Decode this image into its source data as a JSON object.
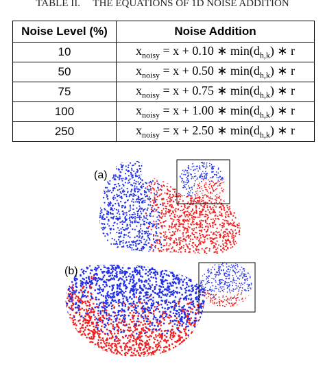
{
  "table_title": "TABLE II.     THE EQUATIONS OF 1D NOISE ADDITION",
  "table": {
    "header": [
      "Noise Level (%)",
      "Noise Addition"
    ],
    "rows": [
      {
        "level": "10",
        "x": "x",
        "x_sub": "noisy",
        "mid": " = x + 0.10 ∗ min(d",
        "d_sub": "h,k",
        "end": ") ∗ r"
      },
      {
        "level": "50",
        "x": "x",
        "x_sub": "noisy",
        "mid": " = x + 0.50 ∗ min(d",
        "d_sub": "h,k",
        "end": ") ∗ r"
      },
      {
        "level": "75",
        "x": "x",
        "x_sub": "noisy",
        "mid": " = x + 0.75 ∗ min(d",
        "d_sub": "h,k",
        "end": ") ∗ r"
      },
      {
        "level": "100",
        "x": "x",
        "x_sub": "noisy",
        "mid": " = x + 1.00 ∗ min(d",
        "d_sub": "h,k",
        "end": ") ∗ r"
      },
      {
        "level": "250",
        "x": "x",
        "x_sub": "noisy",
        "mid": " = x + 2.50 ∗ min(d",
        "d_sub": "h,k",
        "end": ") ∗ r"
      }
    ]
  },
  "figure": {
    "label_a": "(a)",
    "label_b": "(b)"
  }
}
